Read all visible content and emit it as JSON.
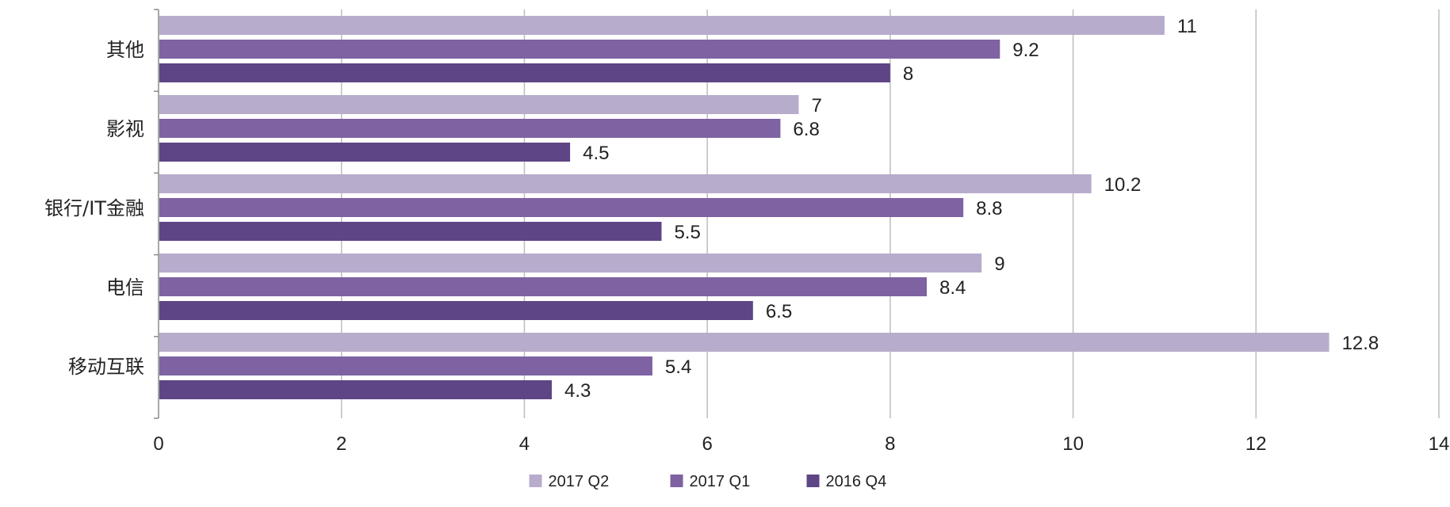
{
  "chart_data": {
    "type": "bar",
    "orientation": "horizontal",
    "title": "",
    "xlabel": "",
    "ylabel": "",
    "categories": [
      "其他",
      "影视",
      "银行/IT金融",
      "电信",
      "移动互联"
    ],
    "series": [
      {
        "name": "2017 Q2",
        "color": "#b8accc",
        "values": [
          11,
          7,
          10.2,
          9,
          12.8
        ]
      },
      {
        "name": "2017 Q1",
        "color": "#7e62a2",
        "values": [
          9.2,
          6.8,
          8.8,
          8.4,
          5.4
        ]
      },
      {
        "name": "2016 Q4",
        "color": "#5e4585",
        "values": [
          8,
          4.5,
          5.5,
          6.5,
          4.3
        ]
      }
    ],
    "x_ticks": [
      "0",
      "2",
      "4",
      "6",
      "8",
      "10",
      "12",
      "14"
    ],
    "xlim": [
      0,
      14
    ],
    "grid": "vertical",
    "legend_position": "bottom"
  }
}
